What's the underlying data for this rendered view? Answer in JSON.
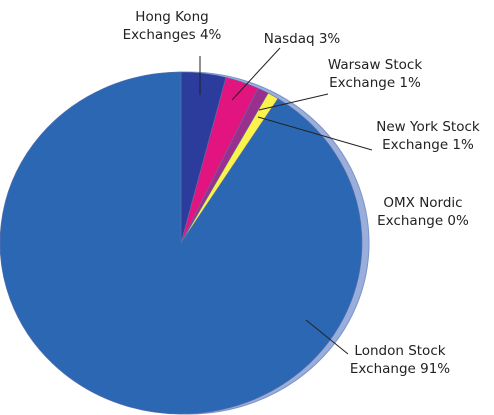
{
  "chart_data": {
    "type": "pie",
    "categories": [
      "Hong Kong Exchanges",
      "Nasdaq",
      "Warsaw Stock Exchange",
      "New York Stock Exchange",
      "OMX Nordic Exchange",
      "London Stock Exchange"
    ],
    "values": [
      4,
      3,
      1,
      1,
      0,
      91
    ],
    "value_labels": [
      "4%",
      "3%",
      "1%",
      "1%",
      "0%",
      "91%"
    ],
    "colors": [
      "#2b3c9c",
      "#e2147f",
      "#9a2f8e",
      "#fbf24c",
      "#8fa6d8",
      "#2c67b3"
    ]
  }
}
